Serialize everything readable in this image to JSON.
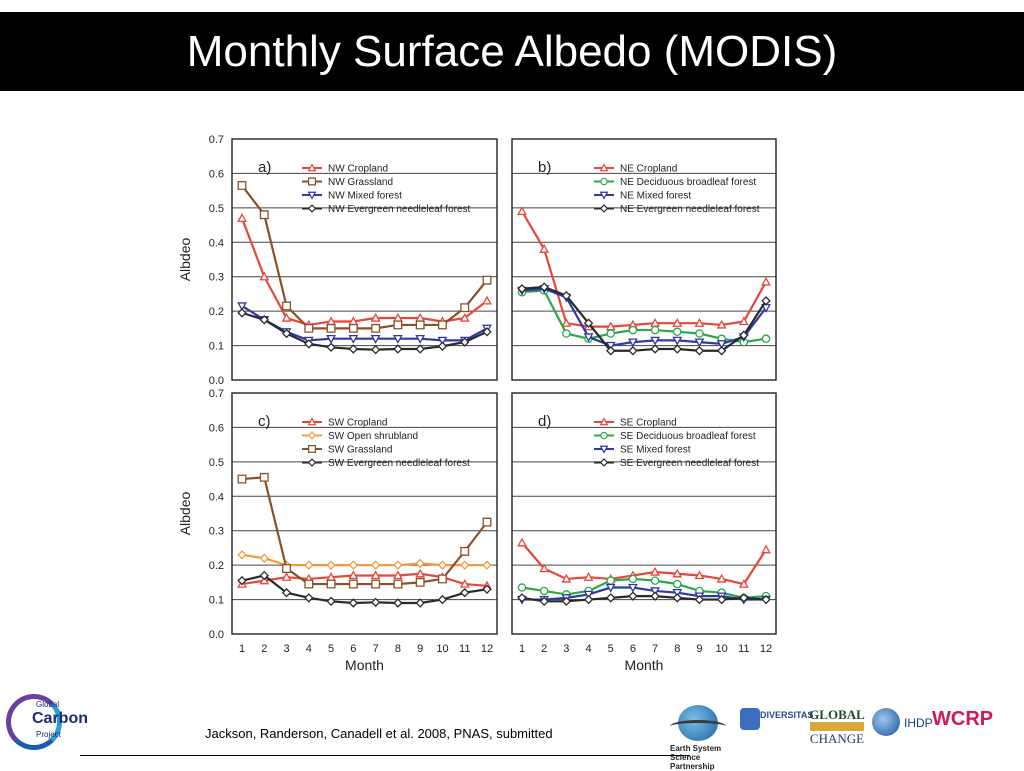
{
  "slide": {
    "title": "Monthly Surface Albedo (MODIS)",
    "citation": "Jackson, Randerson, Canadell et al. 2008, PNAS, submitted"
  },
  "logos": {
    "gcp": {
      "line1": "Global",
      "line2": "Carbon",
      "line3": "Project"
    },
    "essp": {
      "line1": "Earth System",
      "line2": "Science Partnership"
    },
    "diversitas": "DIVERSITAS",
    "global_change": {
      "line1": "GLOBAL",
      "line2": "CHANGE"
    },
    "ihdp": "IHDP",
    "wcrp": "WCRP"
  },
  "colors": {
    "red": "#e8463a",
    "orange": "#f59a3c",
    "brown": "#8a5128",
    "blue": "#2d3aa8",
    "dark": "#2a2a2a",
    "green": "#2aa84a"
  },
  "chart_data": [
    {
      "type": "line",
      "panel": "a)",
      "xlabel": "",
      "ylabel": "Albdeo",
      "x": [
        1,
        2,
        3,
        4,
        5,
        6,
        7,
        8,
        9,
        10,
        11,
        12
      ],
      "ylim": [
        0,
        0.7
      ],
      "yticks": [
        "0.0",
        "0.1",
        "0.2",
        "0.3",
        "0.4",
        "0.5",
        "0.6",
        "0.7"
      ],
      "legend_position": "top-right",
      "series": [
        {
          "name": "NW Cropland",
          "color": "#e8463a",
          "marker": "triangle-up",
          "values": [
            0.47,
            0.3,
            0.18,
            0.16,
            0.17,
            0.17,
            0.18,
            0.18,
            0.18,
            0.17,
            0.18,
            0.23
          ]
        },
        {
          "name": "NW Grassland",
          "color": "#8a5128",
          "marker": "square",
          "values": [
            0.565,
            0.48,
            0.215,
            0.15,
            0.15,
            0.15,
            0.15,
            0.16,
            0.16,
            0.16,
            0.21,
            0.29
          ]
        },
        {
          "name": "NW Mixed forest",
          "color": "#2d3aa8",
          "marker": "triangle-down",
          "values": [
            0.215,
            0.175,
            0.14,
            0.115,
            0.12,
            0.12,
            0.12,
            0.12,
            0.12,
            0.115,
            0.115,
            0.15
          ]
        },
        {
          "name": "NW Evergreen needleleaf forest",
          "color": "#2a2a2a",
          "marker": "diamond",
          "values": [
            0.195,
            0.175,
            0.135,
            0.105,
            0.095,
            0.09,
            0.088,
            0.09,
            0.09,
            0.098,
            0.11,
            0.14
          ]
        }
      ]
    },
    {
      "type": "line",
      "panel": "b)",
      "xlabel": "",
      "ylabel": "",
      "x": [
        1,
        2,
        3,
        4,
        5,
        6,
        7,
        8,
        9,
        10,
        11,
        12
      ],
      "ylim": [
        0,
        0.7
      ],
      "legend_position": "top-right",
      "series": [
        {
          "name": "NE Cropland",
          "color": "#e8463a",
          "marker": "triangle-up",
          "values": [
            0.49,
            0.38,
            0.165,
            0.155,
            0.155,
            0.16,
            0.165,
            0.165,
            0.165,
            0.16,
            0.17,
            0.285
          ]
        },
        {
          "name": "NE Deciduous broadleaf forest",
          "color": "#2aa84a",
          "marker": "circle",
          "values": [
            0.255,
            0.26,
            0.135,
            0.12,
            0.135,
            0.145,
            0.145,
            0.14,
            0.135,
            0.12,
            0.11,
            0.12
          ]
        },
        {
          "name": "NE Mixed forest",
          "color": "#2d3aa8",
          "marker": "triangle-down",
          "values": [
            0.26,
            0.265,
            0.24,
            0.125,
            0.1,
            0.11,
            0.115,
            0.115,
            0.11,
            0.105,
            0.125,
            0.21
          ]
        },
        {
          "name": "NE Evergreen needleleaf forest",
          "color": "#2a2a2a",
          "marker": "diamond",
          "values": [
            0.265,
            0.27,
            0.245,
            0.165,
            0.085,
            0.085,
            0.09,
            0.09,
            0.085,
            0.085,
            0.13,
            0.23
          ]
        }
      ]
    },
    {
      "type": "line",
      "panel": "c)",
      "xlabel": "Month",
      "ylabel": "Albdeo",
      "x": [
        1,
        2,
        3,
        4,
        5,
        6,
        7,
        8,
        9,
        10,
        11,
        12
      ],
      "ylim": [
        0,
        0.7
      ],
      "yticks": [
        "0.0",
        "0.1",
        "0.2",
        "0.3",
        "0.4",
        "0.5",
        "0.6",
        "0.7"
      ],
      "legend_position": "top-right",
      "series": [
        {
          "name": "SW Cropland",
          "color": "#e8463a",
          "marker": "triangle-up",
          "values": [
            0.145,
            0.155,
            0.165,
            0.16,
            0.165,
            0.17,
            0.17,
            0.17,
            0.175,
            0.165,
            0.145,
            0.14
          ]
        },
        {
          "name": "SW Open shrubland",
          "color": "#f59a3c",
          "marker": "diamond",
          "values": [
            0.23,
            0.22,
            0.2,
            0.2,
            0.2,
            0.2,
            0.2,
            0.2,
            0.205,
            0.2,
            0.2,
            0.2
          ]
        },
        {
          "name": "SW Grassland",
          "color": "#8a5128",
          "marker": "square",
          "values": [
            0.45,
            0.455,
            0.19,
            0.145,
            0.145,
            0.145,
            0.145,
            0.145,
            0.15,
            0.16,
            0.24,
            0.325
          ]
        },
        {
          "name": "SW Evergreen needleleaf forest",
          "color": "#2a2a2a",
          "marker": "diamond",
          "values": [
            0.155,
            0.17,
            0.12,
            0.105,
            0.095,
            0.09,
            0.092,
            0.09,
            0.09,
            0.1,
            0.12,
            0.13
          ]
        }
      ]
    },
    {
      "type": "line",
      "panel": "d)",
      "xlabel": "Month",
      "ylabel": "",
      "x": [
        1,
        2,
        3,
        4,
        5,
        6,
        7,
        8,
        9,
        10,
        11,
        12
      ],
      "ylim": [
        0,
        0.7
      ],
      "legend_position": "top-right",
      "series": [
        {
          "name": "SE Cropland",
          "color": "#e8463a",
          "marker": "triangle-up",
          "values": [
            0.265,
            0.19,
            0.16,
            0.165,
            0.16,
            0.17,
            0.18,
            0.175,
            0.17,
            0.16,
            0.145,
            0.245
          ]
        },
        {
          "name": "SE Deciduous broadleaf forest",
          "color": "#2aa84a",
          "marker": "circle",
          "values": [
            0.135,
            0.125,
            0.115,
            0.125,
            0.155,
            0.16,
            0.155,
            0.145,
            0.125,
            0.12,
            0.105,
            0.11
          ]
        },
        {
          "name": "SE Mixed forest",
          "color": "#2d3aa8",
          "marker": "triangle-down",
          "values": [
            0.1,
            0.1,
            0.105,
            0.115,
            0.135,
            0.135,
            0.125,
            0.12,
            0.11,
            0.11,
            0.1,
            0.1
          ]
        },
        {
          "name": "SE Evergreen needleleaf forest",
          "color": "#2a2a2a",
          "marker": "diamond",
          "values": [
            0.105,
            0.095,
            0.095,
            0.1,
            0.105,
            0.11,
            0.11,
            0.105,
            0.1,
            0.1,
            0.105,
            0.1
          ]
        }
      ]
    }
  ],
  "xticks": [
    "1",
    "2",
    "3",
    "4",
    "5",
    "6",
    "7",
    "8",
    "9",
    "10",
    "11",
    "12"
  ]
}
